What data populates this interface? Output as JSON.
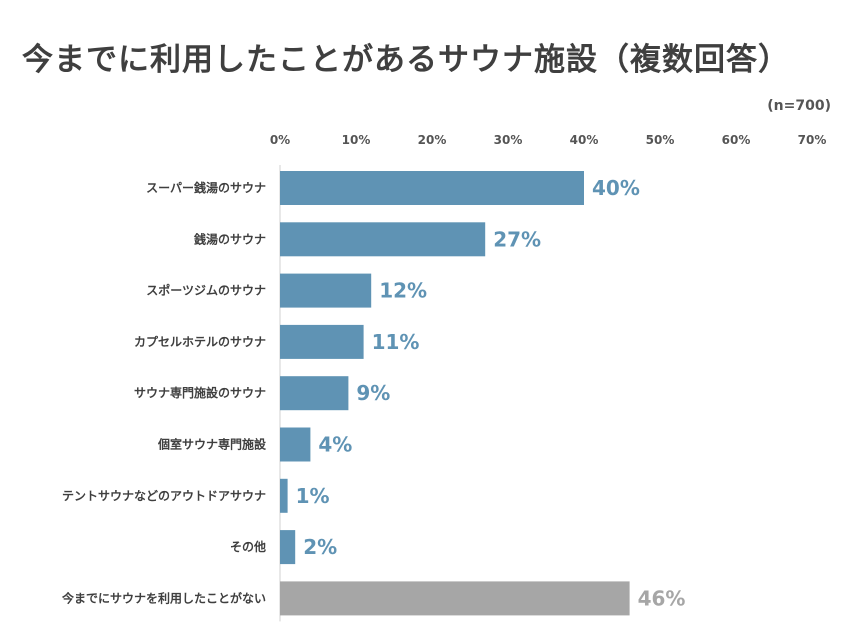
{
  "chart_data": {
    "type": "bar",
    "orientation": "horizontal",
    "title": "今までに利用したことがあるサウナ施設（複数回答）",
    "note": "(n=700)",
    "categories": [
      "スーパー銭湯のサウナ",
      "銭湯のサウナ",
      "スポーツジムのサウナ",
      "カプセルホテルのサウナ",
      "サウナ専門施設のサウナ",
      "個室サウナ専門施設",
      "テントサウナなどのアウトドアサウナ",
      "その他",
      "今までにサウナを利用したことがない"
    ],
    "values": [
      40,
      27,
      12,
      11,
      9,
      4,
      1,
      2,
      46
    ],
    "value_labels": [
      "40%",
      "27%",
      "12%",
      "11%",
      "9%",
      "4%",
      "1%",
      "2%",
      "46%"
    ],
    "bar_colors": [
      "#5f93b4",
      "#5f93b4",
      "#5f93b4",
      "#5f93b4",
      "#5f93b4",
      "#5f93b4",
      "#5f93b4",
      "#5f93b4",
      "#a6a6a6"
    ],
    "xlim": [
      0,
      70
    ],
    "x_ticks": [
      0,
      10,
      20,
      30,
      40,
      50,
      60,
      70
    ],
    "x_tick_labels": [
      "0%",
      "10%",
      "20%",
      "30%",
      "40%",
      "50%",
      "60%",
      "70%"
    ],
    "axis_position": "top",
    "grid": false,
    "legend": "none"
  }
}
